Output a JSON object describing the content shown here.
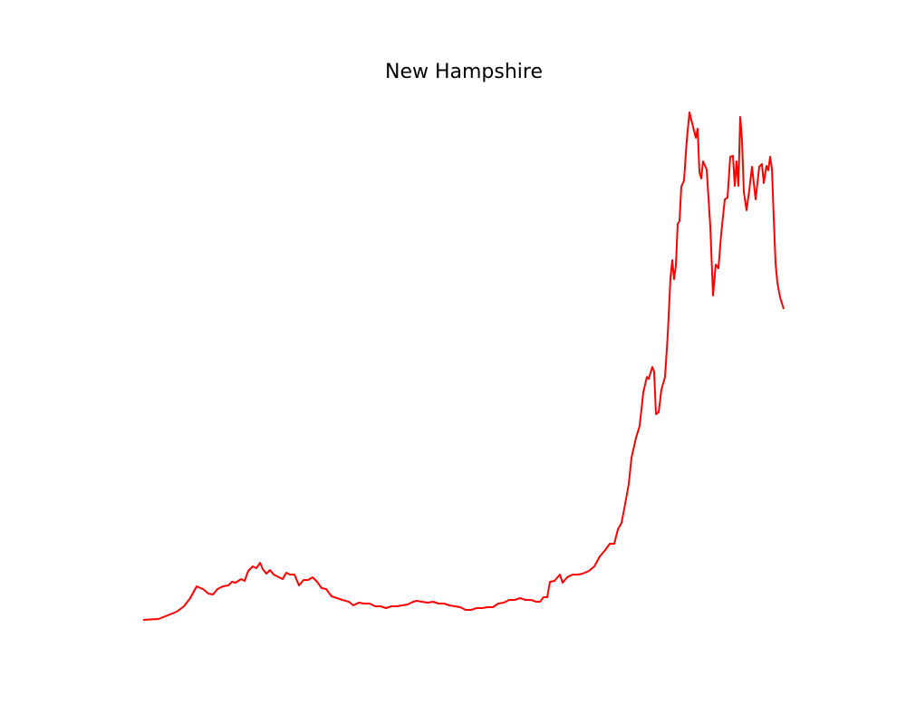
{
  "chart_data": {
    "type": "line",
    "title": "New Hampshire",
    "x": [
      0,
      17,
      27,
      37,
      45,
      52,
      59,
      66,
      72,
      77,
      82,
      88,
      94,
      98,
      102,
      108,
      112,
      116,
      121,
      125,
      129,
      132,
      136,
      140,
      144,
      150,
      154,
      158,
      162,
      167,
      172,
      177,
      182,
      187,
      192,
      197,
      202,
      208,
      214,
      220,
      227,
      232,
      238,
      244,
      250,
      256,
      262,
      268,
      274,
      280,
      286,
      292,
      298,
      302,
      308,
      314,
      320,
      326,
      332,
      338,
      344,
      350,
      356,
      362,
      368,
      374,
      380,
      386,
      392,
      398,
      404,
      410,
      416,
      422,
      428,
      434,
      438,
      442,
      446,
      449,
      454,
      460,
      463,
      468,
      474,
      480,
      485,
      492,
      498,
      504,
      510,
      515,
      520,
      524,
      528,
      532,
      536,
      539,
      544,
      548,
      552,
      556,
      558,
      562,
      564,
      566,
      569,
      572,
      576,
      579,
      582,
      584,
      586,
      588,
      590,
      592,
      594,
      597,
      600,
      603,
      607,
      610,
      612,
      614,
      616,
      618,
      622,
      626,
      629,
      632,
      635,
      638,
      642,
      645,
      648,
      651,
      653,
      655,
      657,
      659,
      661,
      663,
      666,
      669,
      672,
      676,
      680,
      683,
      685,
      688,
      690,
      692,
      694,
      696,
      698,
      700,
      703,
      707
    ],
    "series": [
      {
        "color": "#ff0000",
        "values": [
          0,
          1,
          5,
          9,
          15,
          24,
          37,
          34,
          29,
          28,
          34,
          37,
          38,
          42,
          41,
          45,
          43,
          54,
          59,
          57,
          63,
          56,
          51,
          55,
          50,
          47,
          45,
          52,
          50,
          50,
          38,
          44,
          44,
          47,
          42,
          35,
          34,
          26,
          24,
          22,
          20,
          16,
          19,
          18,
          18,
          15,
          15,
          13,
          15,
          15,
          16,
          17,
          20,
          21,
          20,
          19,
          20,
          18,
          18,
          16,
          15,
          14,
          11,
          11,
          13,
          13,
          14,
          14,
          18,
          19,
          22,
          22,
          24,
          22,
          22,
          20,
          20,
          25,
          25,
          42,
          43,
          50,
          41,
          47,
          50,
          50,
          51,
          54,
          59,
          70,
          77,
          84,
          84,
          100,
          107,
          128,
          150,
          179,
          201,
          214,
          251,
          268,
          266,
          279,
          274,
          227,
          229,
          254,
          268,
          314,
          377,
          397,
          376,
          391,
          437,
          440,
          478,
          485,
          529,
          560,
          544,
          532,
          542,
          494,
          487,
          506,
          497,
          434,
          358,
          392,
          388,
          426,
          464,
          466,
          511,
          512,
          479,
          506,
          479,
          555,
          529,
          472,
          452,
          474,
          500,
          464,
          500,
          503,
          482,
          501,
          496,
          511,
          498,
          444,
          394,
          372,
          356,
          343
        ]
      }
    ],
    "xlim": [
      -33,
      742
    ],
    "ylim": [
      -28,
      588
    ]
  }
}
